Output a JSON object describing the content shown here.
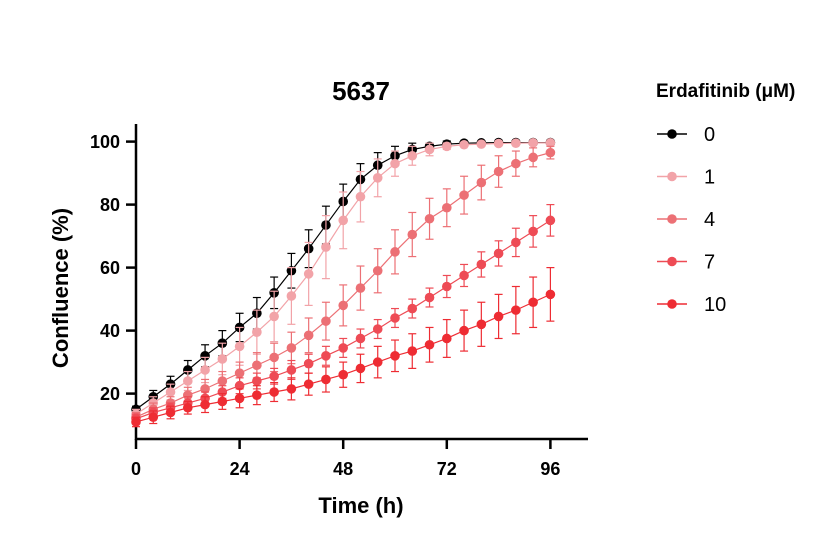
{
  "chart_data": {
    "type": "line",
    "title": "5637",
    "xlabel": "Time (h)",
    "ylabel": "Confluence (%)",
    "xlim": [
      0,
      104
    ],
    "ylim": [
      8,
      102
    ],
    "xticks": [
      0,
      24,
      48,
      72,
      96
    ],
    "yticks": [
      20,
      40,
      60,
      80,
      100
    ],
    "legend_title": "Erdafitinib (μM)",
    "legend_position": "right",
    "grid": false,
    "x": [
      0,
      4,
      8,
      12,
      16,
      20,
      24,
      28,
      32,
      36,
      40,
      44,
      48,
      52,
      56,
      60,
      64,
      68,
      72,
      76,
      80,
      84,
      88,
      92,
      96
    ],
    "series": [
      {
        "name": "0",
        "color": "#000000",
        "values": [
          15,
          19,
          23,
          27.5,
          32,
          36,
          41,
          45.5,
          52,
          59,
          66,
          73.5,
          81,
          88,
          92.5,
          95.5,
          97.5,
          98.5,
          99.2,
          99.5,
          99.6,
          99.7,
          99.7,
          99.7,
          99.7
        ],
        "errors": [
          1,
          2,
          2.5,
          3,
          3.5,
          4,
          4.5,
          5,
          5,
          5.5,
          6,
          6,
          5.5,
          5,
          4,
          3,
          2,
          1,
          1,
          0.5,
          0.5,
          0.5,
          0.5,
          0.5,
          0.5
        ]
      },
      {
        "name": "1",
        "color": "#f2a3a8",
        "values": [
          13.5,
          17,
          20.5,
          24,
          27.5,
          31,
          35,
          39.5,
          44.5,
          51,
          58,
          66.5,
          75,
          82.5,
          88.5,
          93,
          95.5,
          97.5,
          98.5,
          99,
          99.2,
          99.4,
          99.5,
          99.6,
          99.6
        ],
        "errors": [
          1.5,
          2,
          2.5,
          3,
          4,
          5,
          6,
          7,
          8,
          9,
          10,
          10,
          9,
          8,
          6,
          4,
          3,
          2,
          1,
          0.5,
          0.5,
          0.5,
          0.5,
          0.5,
          0.5
        ]
      },
      {
        "name": "4",
        "color": "#ec7075",
        "values": [
          12.5,
          15,
          17,
          19.5,
          21.5,
          24,
          26.5,
          29,
          31.5,
          34.5,
          38.5,
          43,
          48,
          53.5,
          59,
          65,
          70.5,
          75.5,
          79,
          83,
          87,
          90.5,
          93,
          95,
          96.5
        ],
        "errors": [
          1.5,
          2,
          2,
          2.5,
          3,
          3,
          3.5,
          4,
          4.5,
          5,
          5.5,
          6,
          6.5,
          7,
          7,
          7,
          7,
          6.5,
          6,
          6,
          5.5,
          5,
          4,
          3,
          2
        ]
      },
      {
        "name": "7",
        "color": "#ee4b55",
        "values": [
          12,
          14,
          15.5,
          17,
          18.5,
          20.5,
          22.5,
          24,
          25.5,
          27.5,
          29.5,
          32,
          34.5,
          37.5,
          40.5,
          44,
          47,
          50.5,
          54,
          57.5,
          61,
          64.5,
          68,
          71.5,
          75
        ],
        "errors": [
          1.5,
          1.5,
          1.5,
          2,
          2,
          2,
          2.5,
          2.5,
          2.5,
          3,
          3,
          3,
          3,
          3,
          3,
          3,
          3,
          3,
          3.5,
          3.5,
          4,
          4,
          4.5,
          5,
          5
        ]
      },
      {
        "name": "10",
        "color": "#ee2c33",
        "values": [
          11,
          12.5,
          14,
          15.5,
          16.5,
          17.5,
          18.5,
          19.5,
          20.5,
          21.5,
          23,
          24.5,
          26,
          28,
          30,
          32,
          33.5,
          35.5,
          37.5,
          40,
          42,
          44.5,
          46.5,
          49,
          51.5
        ],
        "errors": [
          1.5,
          2,
          2,
          2,
          2.5,
          2.5,
          3,
          3,
          3,
          3.5,
          3.5,
          4,
          4,
          4.5,
          5,
          5,
          5.5,
          5.5,
          6,
          6.5,
          7,
          7,
          7.5,
          8,
          8.5
        ]
      }
    ]
  }
}
